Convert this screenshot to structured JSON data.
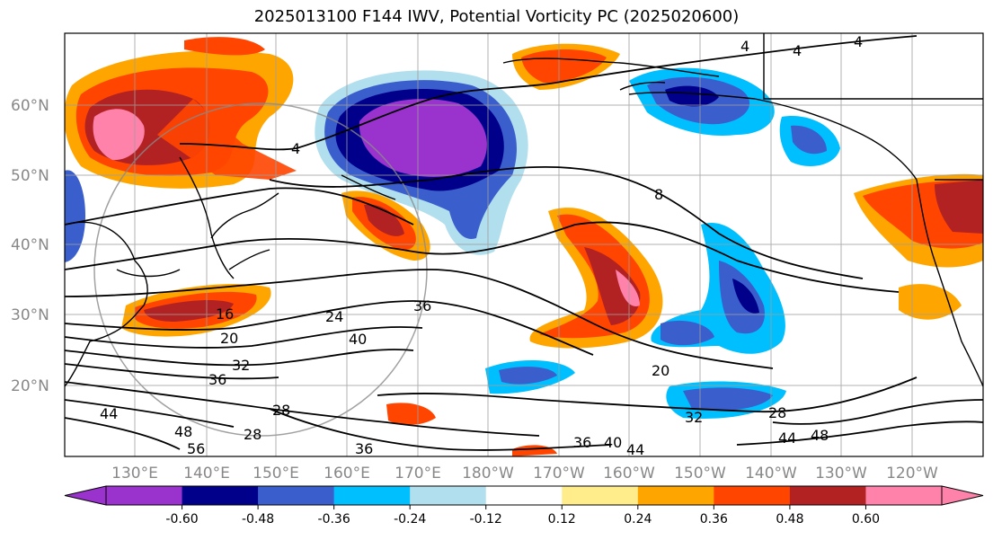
{
  "title": "2025013100 F144 IWV, Potential Vorticity PC (2025020600)",
  "lat_labels": [
    "60°N",
    "50°N",
    "40°N",
    "30°N",
    "20°N"
  ],
  "lon_labels": [
    "130°E",
    "140°E",
    "150°E",
    "160°E",
    "170°E",
    "180°W",
    "170°W",
    "160°W",
    "150°W",
    "140°W",
    "130°W",
    "120°W"
  ],
  "colorbar": {
    "colors": [
      "#9a32cd",
      "#00008b",
      "#3a5fcd",
      "#00bfff",
      "#b2dfee",
      "#ffffff",
      "#ffec8b",
      "#ffa500",
      "#ff4500",
      "#b22222",
      "#ff82ab"
    ],
    "ticks": [
      "-0.60",
      "-0.48",
      "-0.36",
      "-0.24",
      "-0.12",
      "0.12",
      "0.24",
      "0.36",
      "0.48",
      "0.60"
    ]
  },
  "contour_labels": [
    "4",
    "4",
    "4",
    "4",
    "8",
    "16",
    "20",
    "24",
    "36",
    "40",
    "32",
    "36",
    "44",
    "48",
    "56",
    "28",
    "28",
    "36",
    "36",
    "40",
    "44",
    "28",
    "32",
    "44",
    "48",
    "20"
  ]
}
